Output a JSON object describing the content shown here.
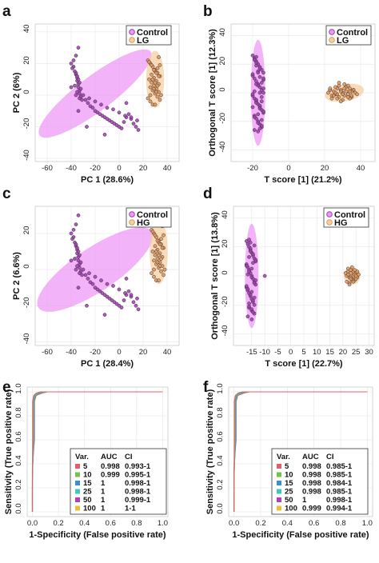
{
  "chart_data": [
    {
      "panel": "a",
      "type": "scatter",
      "xlabel": "PC 1 (28.6%)",
      "ylabel": "PC 2 (6%)",
      "xlim": [
        -70,
        50
      ],
      "ylim": [
        -42,
        45
      ],
      "xticks": [
        -60,
        -40,
        -20,
        0,
        20,
        40
      ],
      "yticks": [
        -40,
        -20,
        0,
        20,
        40
      ],
      "legend": "top-right",
      "series": [
        {
          "name": "Control",
          "color": "#9b3fb0",
          "ellipse": {
            "cx": -20,
            "cy": 1,
            "rx": 58,
            "ry": 11,
            "angle": -37,
            "color": "#ee99f5"
          },
          "x": [
            -40,
            -38,
            -37,
            -36,
            -35,
            -35,
            -34,
            -34,
            -33,
            -33,
            -32,
            -31,
            -39,
            -36,
            -34,
            -37,
            -35,
            -33,
            -38,
            -36,
            -34,
            -35,
            -33,
            -32,
            -30,
            -28,
            -26,
            -24,
            -22,
            -20,
            -18,
            -16,
            -14,
            -12,
            -10,
            -8,
            -6,
            -4,
            -2,
            0,
            2,
            4,
            6,
            8,
            10,
            12,
            14,
            16,
            -25,
            -15,
            -5,
            5,
            15,
            -20,
            -10,
            0,
            10,
            -27,
            -12,
            6,
            -34,
            -36,
            -40
          ],
          "y": [
            20,
            18,
            15,
            13,
            11,
            9,
            7,
            5,
            3,
            1,
            -1,
            -3,
            17,
            14,
            10,
            6,
            2,
            -2,
            22,
            25,
            30,
            12,
            8,
            4,
            0,
            -3,
            -5,
            -7,
            -8,
            -10,
            -11,
            -12,
            -13,
            -14,
            -15,
            -16,
            -17,
            -18,
            -19,
            -20,
            -21,
            -17,
            -14,
            -12,
            -15,
            -18,
            -20,
            -22,
            -2,
            -6,
            -9,
            -13,
            -16,
            -4,
            -8,
            -11,
            -14,
            -20,
            -25,
            -5,
            -10,
            0,
            5
          ]
        },
        {
          "name": "LG",
          "color": "#d99a55",
          "ellipse": {
            "cx": 30,
            "cy": 10,
            "rx": 7.5,
            "ry": 18,
            "angle": 0,
            "color": "#f5cfa0"
          },
          "x": [
            24,
            26,
            28,
            30,
            32,
            34,
            25,
            27,
            29,
            31,
            33,
            35,
            24,
            26,
            28,
            30,
            32,
            34,
            25,
            27,
            29,
            31,
            33,
            26,
            28,
            30,
            32,
            34,
            27,
            29,
            31,
            33,
            28,
            30,
            32,
            29,
            31,
            26,
            33,
            30
          ],
          "y": [
            22,
            20,
            18,
            16,
            14,
            12,
            10,
            8,
            6,
            4,
            2,
            0,
            -2,
            -4,
            -6,
            15,
            17,
            19,
            21,
            13,
            11,
            9,
            7,
            5,
            3,
            1,
            -1,
            -3,
            19,
            16,
            14,
            12,
            10,
            8,
            6,
            4,
            2,
            0,
            24,
            -6
          ]
        }
      ]
    },
    {
      "panel": "b",
      "type": "scatter",
      "xlabel": "T score [1] (21.2%)",
      "ylabel": "Orthogonal T score [1] (12.3%)",
      "xlim": [
        -32,
        48
      ],
      "ylim": [
        -48,
        48
      ],
      "xticks": [
        -20,
        0,
        20,
        40
      ],
      "yticks": [
        -40,
        -20,
        0,
        20,
        40
      ],
      "legend": "top-right",
      "series": [
        {
          "name": "Control",
          "color": "#9b3fb0",
          "ellipse": {
            "cx": -17,
            "cy": 0,
            "rx": 4,
            "ry": 37,
            "angle": 0,
            "color": "#ee99f5"
          },
          "x": [
            -20,
            -19,
            -18,
            -17,
            -16,
            -15,
            -14,
            -20,
            -19,
            -18,
            -17,
            -16,
            -15,
            -14,
            -20,
            -19,
            -18,
            -17,
            -16,
            -15,
            -14,
            -19,
            -18,
            -17,
            -16,
            -15,
            -19,
            -18,
            -17,
            -16,
            -15,
            -14,
            -20,
            -18,
            -16,
            -14,
            -19,
            -17,
            -15,
            -18,
            -16,
            -20,
            -14,
            -17,
            -19,
            -15,
            -18,
            -16,
            -17,
            -15,
            -19,
            -16,
            -18,
            -17,
            -14,
            -20,
            -16,
            -18,
            -15,
            -17
          ],
          "y": [
            26,
            24,
            22,
            20,
            18,
            16,
            14,
            12,
            10,
            8,
            6,
            4,
            2,
            0,
            -2,
            -4,
            -6,
            -8,
            -10,
            -12,
            -14,
            -16,
            -18,
            -20,
            -22,
            -24,
            -26,
            19,
            15,
            11,
            7,
            3,
            -1,
            -5,
            -9,
            -13,
            -17,
            -21,
            -23,
            21,
            17,
            13,
            9,
            5,
            1,
            -3,
            -7,
            -11,
            -15,
            -19,
            23,
            -25,
            25,
            -27,
            10,
            -10,
            0,
            6,
            -6,
            14
          ]
        },
        {
          "name": "LG",
          "color": "#d99a55",
          "ellipse": {
            "cx": 31,
            "cy": 0,
            "rx": 11,
            "ry": 6,
            "angle": -10,
            "color": "#f5cfa0"
          },
          "x": [
            22,
            23,
            24,
            25,
            26,
            27,
            28,
            29,
            30,
            31,
            32,
            33,
            34,
            35,
            36,
            37,
            38,
            24,
            26,
            28,
            30,
            32,
            34,
            36,
            25,
            27,
            29,
            31,
            33,
            35,
            23,
            27,
            31,
            35,
            29,
            33,
            26,
            30,
            34,
            28
          ],
          "y": [
            0,
            2,
            -2,
            1,
            -1,
            3,
            -3,
            2,
            0,
            -2,
            1,
            -1,
            3,
            -3,
            2,
            0,
            -1,
            -4,
            4,
            5,
            -5,
            4,
            -4,
            2,
            -2,
            -1,
            1,
            3,
            -3,
            1,
            3,
            -4,
            6,
            -2,
            -6,
            5,
            0,
            -1,
            1,
            7
          ]
        }
      ]
    },
    {
      "panel": "c",
      "type": "scatter",
      "xlabel": "PC 1 (28.4%)",
      "ylabel": "PC 2 (6.6%)",
      "xlim": [
        -70,
        50
      ],
      "ylim": [
        -42,
        35
      ],
      "xticks": [
        -60,
        -40,
        -20,
        0,
        20,
        40
      ],
      "yticks": [
        -40,
        -20,
        0,
        20
      ],
      "legend": "top-right",
      "series": [
        {
          "name": "Control",
          "color": "#9b3fb0",
          "ellipse": {
            "cx": -20,
            "cy": 0,
            "rx": 57,
            "ry": 12,
            "angle": -34,
            "color": "#ee99f5"
          },
          "x": [
            -40,
            -38,
            -37,
            -36,
            -35,
            -35,
            -34,
            -34,
            -33,
            -33,
            -32,
            -31,
            -39,
            -36,
            -34,
            -37,
            -35,
            -33,
            -38,
            -36,
            -34,
            -35,
            -33,
            -32,
            -30,
            -28,
            -26,
            -24,
            -22,
            -20,
            -18,
            -16,
            -14,
            -12,
            -10,
            -8,
            -6,
            -4,
            -2,
            0,
            2,
            4,
            6,
            8,
            10,
            12,
            14,
            16,
            -25,
            -15,
            -5,
            5,
            15,
            -20,
            -10,
            0,
            10,
            -27,
            -12,
            6,
            -34,
            -36,
            -40
          ],
          "y": [
            20,
            18,
            15,
            13,
            11,
            9,
            7,
            5,
            3,
            1,
            -1,
            -3,
            17,
            14,
            10,
            6,
            2,
            -2,
            22,
            25,
            30,
            12,
            8,
            4,
            0,
            -3,
            -5,
            -7,
            -8,
            -10,
            -11,
            -12,
            -13,
            -14,
            -15,
            -16,
            -17,
            -18,
            -19,
            -20,
            -21,
            -17,
            -14,
            -12,
            -15,
            -18,
            -20,
            -22,
            -2,
            -6,
            -9,
            -13,
            -16,
            -4,
            -8,
            -11,
            -14,
            -20,
            -25,
            -5,
            -10,
            0,
            5
          ]
        },
        {
          "name": "HG",
          "color": "#d99a55",
          "ellipse": {
            "cx": 33,
            "cy": 10,
            "rx": 7.5,
            "ry": 18,
            "angle": 0,
            "color": "#f5cfa0"
          },
          "x": [
            27,
            29,
            31,
            33,
            35,
            37,
            28,
            30,
            32,
            34,
            36,
            38,
            27,
            29,
            31,
            33,
            35,
            37,
            28,
            30,
            32,
            34,
            36,
            29,
            31,
            33,
            35,
            37,
            30,
            32,
            34,
            36,
            31,
            33,
            35,
            32,
            34,
            29,
            36,
            33
          ],
          "y": [
            22,
            20,
            18,
            16,
            14,
            12,
            10,
            8,
            6,
            4,
            2,
            0,
            -2,
            -4,
            -6,
            15,
            17,
            19,
            21,
            13,
            11,
            9,
            7,
            5,
            3,
            1,
            -1,
            -3,
            19,
            16,
            14,
            12,
            10,
            8,
            6,
            4,
            2,
            0,
            24,
            -6
          ]
        }
      ]
    },
    {
      "panel": "d",
      "type": "scatter",
      "xlabel": "T score [1] (22.7%)",
      "ylabel": "Orthogonal T score [1] (13.8%)",
      "xlim": [
        -22,
        32
      ],
      "ylim": [
        -48,
        48
      ],
      "xticks": [
        -15,
        -10,
        -5,
        0,
        5,
        10,
        15,
        20,
        25,
        30
      ],
      "yticks": [
        -40,
        -20,
        0,
        20,
        40
      ],
      "legend": "top-right",
      "series": [
        {
          "name": "Control",
          "color": "#9b3fb0",
          "ellipse": {
            "cx": -15,
            "cy": 0,
            "rx": 2.6,
            "ry": 36,
            "angle": 0,
            "color": "#ee99f5"
          },
          "x": [
            -17,
            -16.5,
            -16,
            -15.5,
            -15,
            -14.5,
            -14,
            -13.5,
            -17,
            -16.5,
            -16,
            -15.5,
            -15,
            -14.5,
            -14,
            -13.5,
            -17,
            -16.5,
            -16,
            -15.5,
            -15,
            -14.5,
            -14,
            -16,
            -15,
            -14,
            -16.5,
            -15.5,
            -14.5,
            -13.5,
            -17,
            -16,
            -15,
            -14,
            -16.5,
            -15.5,
            -14.5,
            -16,
            -15,
            -14,
            -15.5,
            -16,
            -14.5,
            -15,
            -16.5,
            -13.5,
            -17,
            -15,
            -14,
            -16,
            -10,
            -15.5,
            -14.5,
            -16,
            -15
          ],
          "y": [
            24,
            22,
            20,
            18,
            16,
            14,
            12,
            10,
            8,
            6,
            4,
            2,
            0,
            -2,
            -4,
            -6,
            -8,
            -10,
            -12,
            -14,
            -16,
            -18,
            -20,
            -22,
            -24,
            -26,
            -28,
            19,
            15,
            11,
            7,
            3,
            -1,
            -5,
            -9,
            -13,
            -17,
            -21,
            -23,
            21,
            17,
            13,
            9,
            5,
            1,
            -3,
            -7,
            -11,
            -15,
            -19,
            0,
            23,
            -25,
            25,
            -30
          ]
        },
        {
          "name": "HG",
          "color": "#d99a55",
          "ellipse": {
            "cx": 23.5,
            "cy": 0,
            "rx": 3.2,
            "ry": 6,
            "angle": 0,
            "color": "#f5cfa0"
          },
          "x": [
            21,
            22,
            23,
            24,
            25,
            26,
            21.5,
            22.5,
            23.5,
            24.5,
            25.5,
            22,
            23,
            24,
            25,
            21.5,
            22.5,
            23.5,
            24.5,
            25.5,
            22,
            23,
            24,
            25,
            23.5,
            22.5,
            24.5,
            23
          ],
          "y": [
            2,
            3,
            4,
            3,
            2,
            1,
            0,
            -1,
            -2,
            -3,
            -1,
            1,
            2,
            0,
            -2,
            -4,
            -5,
            -3,
            1,
            3,
            5,
            -1,
            -4,
            0,
            6,
            -6,
            4,
            -2
          ]
        }
      ]
    },
    {
      "panel": "e",
      "type": "line",
      "xlabel": "1-Specificity (False positive rate)",
      "ylabel": "Sensitivity (True positive rate)",
      "xlim": [
        -0.04,
        1.04
      ],
      "ylim": [
        -0.04,
        1.04
      ],
      "xticks": [
        0.0,
        0.2,
        0.4,
        0.6,
        0.8,
        1.0
      ],
      "yticks": [
        0.0,
        0.2,
        0.4,
        0.6,
        0.8,
        1.0
      ],
      "legend": "bottom-right",
      "table_header": [
        "Var.",
        "AUC",
        "CI"
      ],
      "series": [
        {
          "name": "5",
          "color": "#e0606a",
          "auc": "0.998",
          "ci": "0.993-1"
        },
        {
          "name": "10",
          "color": "#78c050",
          "auc": "0.999",
          "ci": "0.995-1"
        },
        {
          "name": "15",
          "color": "#3a8fd0",
          "auc": "1",
          "ci": "0.998-1"
        },
        {
          "name": "25",
          "color": "#40c8c0",
          "auc": "1",
          "ci": "0.998-1"
        },
        {
          "name": "50",
          "color": "#b040b8",
          "auc": "1",
          "ci": "0.999-1"
        },
        {
          "name": "100",
          "color": "#e8c040",
          "auc": "1",
          "ci": "1-1"
        }
      ]
    },
    {
      "panel": "f",
      "type": "line",
      "xlabel": "1-Specificity (False positive rate)",
      "ylabel": "Sensitivity (True positive rate)",
      "xlim": [
        -0.04,
        1.04
      ],
      "ylim": [
        -0.04,
        1.04
      ],
      "xticks": [
        0.0,
        0.2,
        0.4,
        0.6,
        0.8,
        1.0
      ],
      "yticks": [
        0.0,
        0.2,
        0.4,
        0.6,
        0.8,
        1.0
      ],
      "legend": "bottom-right",
      "table_header": [
        "Var.",
        "AUC",
        "CI"
      ],
      "series": [
        {
          "name": "5",
          "color": "#e0606a",
          "auc": "0.998",
          "ci": "0.985-1"
        },
        {
          "name": "10",
          "color": "#78c050",
          "auc": "0.998",
          "ci": "0.985-1"
        },
        {
          "name": "15",
          "color": "#3a8fd0",
          "auc": "0.998",
          "ci": "0.984-1"
        },
        {
          "name": "25",
          "color": "#40c8c0",
          "auc": "0.998",
          "ci": "0.985-1"
        },
        {
          "name": "50",
          "color": "#b040b8",
          "auc": "1",
          "ci": "0.998-1"
        },
        {
          "name": "100",
          "color": "#e8c040",
          "auc": "0.999",
          "ci": "0.994-1"
        }
      ]
    }
  ]
}
